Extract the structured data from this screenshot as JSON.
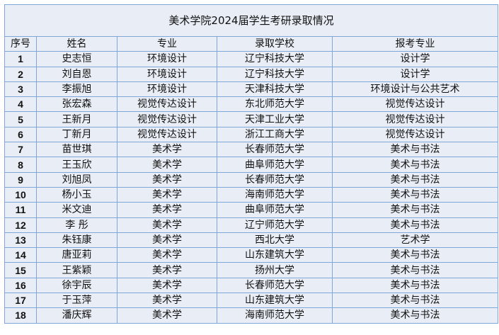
{
  "title": "美术学院2024届学生考研录取情况",
  "headers": [
    "序号",
    "姓名",
    "专业",
    "录取学校",
    "报考专业"
  ],
  "rows": [
    [
      "1",
      "史志恒",
      "环境设计",
      "辽宁科技大学",
      "设计学"
    ],
    [
      "2",
      "刘自恩",
      "环境设计",
      "辽宁科技大学",
      "设计学"
    ],
    [
      "3",
      "李振旭",
      "环境设计",
      "天津科技大学",
      "环境设计与公共艺术"
    ],
    [
      "4",
      "张宏森",
      "视觉传达设计",
      "东北师范大学",
      "视觉传达设计"
    ],
    [
      "5",
      "王新月",
      "视觉传达设计",
      "天津工业大学",
      "视觉传达设计"
    ],
    [
      "6",
      "丁新月",
      "视觉传达设计",
      "浙江工商大学",
      "视觉传达设计"
    ],
    [
      "7",
      "苗世琪",
      "美术学",
      "长春师范大学",
      "美术与书法"
    ],
    [
      "8",
      "王玉欣",
      "美术学",
      "曲阜师范大学",
      "美术与书法"
    ],
    [
      "9",
      "刘旭凤",
      "美术学",
      "长春师范大学",
      "美术与书法"
    ],
    [
      "10",
      "杨小玉",
      "美术学",
      "海南师范大学",
      "美术与书法"
    ],
    [
      "11",
      "米文迪",
      "美术学",
      "曲阜师范大学",
      "美术与书法"
    ],
    [
      "12",
      "李 彤",
      "美术学",
      "辽宁师范大学",
      "美术与书法"
    ],
    [
      "13",
      "朱钰康",
      "美术学",
      "西北大学",
      "艺术学"
    ],
    [
      "14",
      "唐亚莉",
      "美术学",
      "山东建筑大学",
      "美术与书法"
    ],
    [
      "15",
      "王紫颖",
      "美术学",
      "扬州大学",
      "美术与书法"
    ],
    [
      "16",
      "徐宇辰",
      "美术学",
      "长春师范大学",
      "美术与书法"
    ],
    [
      "17",
      "于玉萍",
      "美术学",
      "山东建筑大学",
      "美术与书法"
    ],
    [
      "18",
      "潘庆辉",
      "美术学",
      "海南师范大学",
      "美术与书法"
    ]
  ]
}
